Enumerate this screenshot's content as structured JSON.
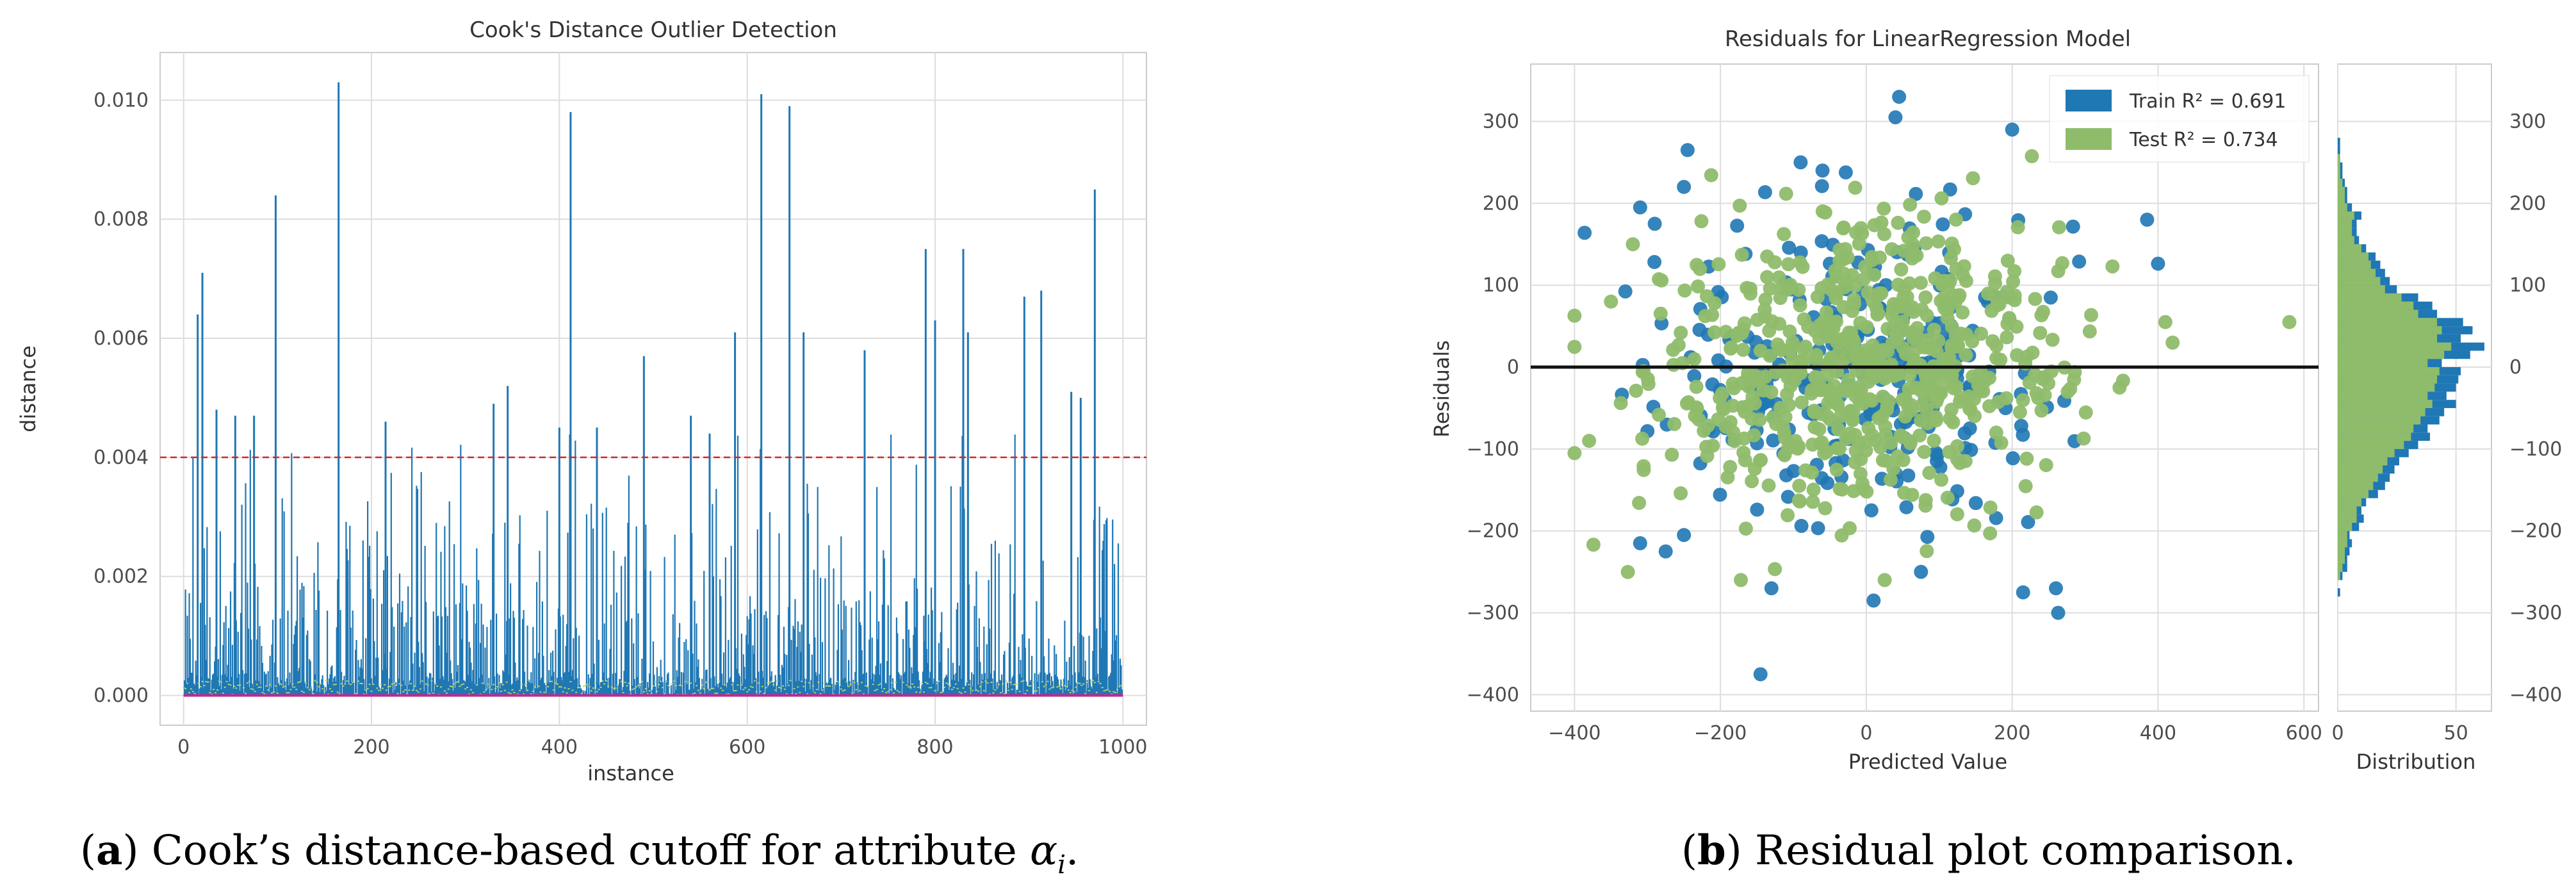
{
  "chart_data": [
    {
      "type": "bar",
      "title": "Cook's Distance Outlier Detection",
      "xlabel": "instance",
      "ylabel": "distance",
      "xlim": [
        -25,
        1025
      ],
      "ylim": [
        -0.0005,
        0.0108
      ],
      "xticks": [
        0,
        200,
        400,
        600,
        800,
        1000
      ],
      "xtick_labels": [
        "0",
        "200",
        "400",
        "600",
        "800",
        "1000"
      ],
      "yticks": [
        0.0,
        0.002,
        0.004,
        0.006,
        0.008,
        0.01
      ],
      "ytick_labels": [
        "0.000",
        "0.002",
        "0.004",
        "0.006",
        "0.008",
        "0.010"
      ],
      "n_instances": 1000,
      "cutoff": 0.004,
      "notable_spikes": [
        {
          "x": 15,
          "y": 0.0064
        },
        {
          "x": 20,
          "y": 0.0071
        },
        {
          "x": 35,
          "y": 0.0048
        },
        {
          "x": 55,
          "y": 0.0047
        },
        {
          "x": 75,
          "y": 0.0047
        },
        {
          "x": 98,
          "y": 0.0084
        },
        {
          "x": 165,
          "y": 0.0103
        },
        {
          "x": 215,
          "y": 0.0046
        },
        {
          "x": 330,
          "y": 0.0049
        },
        {
          "x": 345,
          "y": 0.0052
        },
        {
          "x": 400,
          "y": 0.0045
        },
        {
          "x": 412,
          "y": 0.0098
        },
        {
          "x": 440,
          "y": 0.0045
        },
        {
          "x": 490,
          "y": 0.0057
        },
        {
          "x": 540,
          "y": 0.0047
        },
        {
          "x": 560,
          "y": 0.0044
        },
        {
          "x": 587,
          "y": 0.0061
        },
        {
          "x": 615,
          "y": 0.0101
        },
        {
          "x": 645,
          "y": 0.0099
        },
        {
          "x": 660,
          "y": 0.0061
        },
        {
          "x": 725,
          "y": 0.0058
        },
        {
          "x": 790,
          "y": 0.0075
        },
        {
          "x": 800,
          "y": 0.0063
        },
        {
          "x": 830,
          "y": 0.0075
        },
        {
          "x": 835,
          "y": 0.0061
        },
        {
          "x": 895,
          "y": 0.0067
        },
        {
          "x": 913,
          "y": 0.0068
        },
        {
          "x": 945,
          "y": 0.0051
        },
        {
          "x": 955,
          "y": 0.005
        },
        {
          "x": 970,
          "y": 0.0085
        }
      ],
      "line_color": "#1f77b4",
      "cutoff_color": "#d62728"
    },
    {
      "type": "scatter",
      "title": "Residuals for LinearRegression Model",
      "xlabel": "Predicted Value",
      "ylabel": "Residuals",
      "xlim": [
        -460,
        620
      ],
      "ylim": [
        -420,
        370
      ],
      "xticks": [
        -400,
        -200,
        0,
        200,
        400,
        600
      ],
      "xtick_labels": [
        "−400",
        "−200",
        "0",
        "200",
        "400",
        "600"
      ],
      "yticks": [
        -400,
        -300,
        -200,
        -100,
        0,
        100,
        200,
        300
      ],
      "ytick_labels": [
        "−400",
        "−300",
        "−200",
        "−100",
        "0",
        "100",
        "200",
        "300"
      ],
      "series": [
        {
          "name": "Train",
          "legend": "Train R² = 0.691",
          "r2": 0.691,
          "color": "#1f77b4",
          "outliers": [
            [
              45,
              330
            ],
            [
              40,
              305
            ],
            [
              200,
              290
            ],
            [
              -245,
              265
            ],
            [
              -250,
              220
            ],
            [
              -310,
              195
            ],
            [
              -290,
              175
            ],
            [
              -145,
              -375
            ],
            [
              10,
              -285
            ],
            [
              -130,
              -270
            ],
            [
              215,
              -275
            ],
            [
              260,
              -270
            ],
            [
              -310,
              -215
            ],
            [
              -275,
              -225
            ],
            [
              -250,
              -205
            ],
            [
              75,
              -250
            ],
            [
              385,
              180
            ],
            [
              -60,
              240
            ],
            [
              -90,
              250
            ]
          ]
        },
        {
          "name": "Test",
          "legend": "Test R² = 0.734",
          "r2": 0.734,
          "color": "#8fbc6b",
          "outliers": [
            [
              580,
              55
            ],
            [
              410,
              55
            ],
            [
              -400,
              -105
            ],
            [
              -380,
              -90
            ],
            [
              -320,
              150
            ],
            [
              -350,
              80
            ]
          ]
        }
      ],
      "n_points": 900,
      "zero_line": 0
    },
    {
      "type": "bar",
      "title": "",
      "xlabel": "Distribution",
      "ylabel": "",
      "orientation": "horizontal",
      "xlim": [
        0,
        65
      ],
      "ylim": [
        -420,
        370
      ],
      "xticks": [
        0,
        50
      ],
      "xtick_labels": [
        "0",
        "50"
      ],
      "yticks": [
        -400,
        -300,
        -200,
        -100,
        0,
        100,
        200,
        300
      ],
      "ytick_labels": [
        "−400",
        "−300",
        "−200",
        "−100",
        "0",
        "100",
        "200",
        "300"
      ],
      "bin_width": 10,
      "bins": [
        -280,
        -270,
        -260,
        -250,
        -240,
        -230,
        -220,
        -210,
        -200,
        -190,
        -180,
        -170,
        -160,
        -150,
        -140,
        -130,
        -120,
        -110,
        -100,
        -90,
        -80,
        -70,
        -60,
        -50,
        -40,
        -30,
        -20,
        -10,
        0,
        10,
        20,
        30,
        40,
        50,
        60,
        70,
        80,
        90,
        100,
        110,
        120,
        130,
        140,
        150,
        160,
        170,
        180,
        190,
        200,
        210,
        220,
        230,
        240,
        250,
        260,
        270
      ],
      "series": [
        {
          "name": "Train",
          "color": "#1f77b4",
          "values": [
            1,
            0,
            2,
            4,
            4,
            5,
            6,
            5,
            9,
            11,
            10,
            12,
            17,
            20,
            22,
            24,
            26,
            30,
            34,
            39,
            38,
            43,
            45,
            50,
            46,
            50,
            51,
            52,
            44,
            56,
            62,
            52,
            57,
            53,
            42,
            40,
            34,
            25,
            22,
            20,
            18,
            16,
            12,
            9,
            8,
            8,
            10,
            6,
            4,
            4,
            3,
            2,
            2,
            1,
            1,
            1
          ]
        },
        {
          "name": "Test",
          "color": "#8fbc6b",
          "values": [
            0,
            0,
            1,
            2,
            3,
            3,
            4,
            4,
            6,
            8,
            8,
            10,
            13,
            15,
            17,
            19,
            21,
            24,
            28,
            31,
            32,
            35,
            37,
            40,
            38,
            41,
            42,
            43,
            38,
            45,
            48,
            42,
            44,
            42,
            34,
            32,
            27,
            20,
            18,
            16,
            14,
            13,
            10,
            7,
            6,
            6,
            7,
            4,
            3,
            3,
            2,
            1,
            1,
            1,
            0,
            0
          ]
        }
      ]
    }
  ],
  "captions": {
    "a": {
      "letter": "a",
      "text": " Cook’s distance-based cutoff for attribute "
    },
    "b": {
      "letter": "b",
      "text": " Residual plot comparison."
    }
  }
}
